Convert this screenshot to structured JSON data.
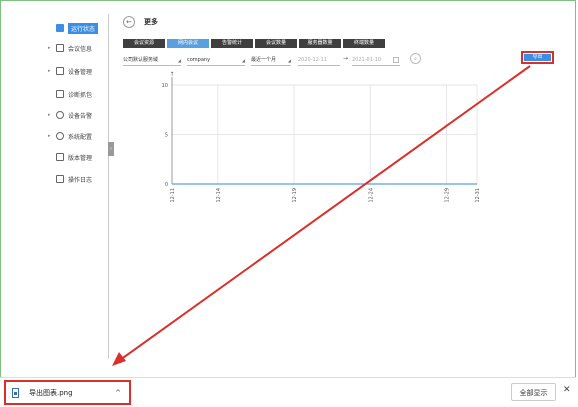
{
  "sidebar": {
    "items": [
      {
        "label": "运行状态",
        "icon": "monitor-icon",
        "arrow": ""
      },
      {
        "label": "会议信息",
        "icon": "document-icon",
        "arrow": "▸"
      },
      {
        "label": "设备管理",
        "icon": "grid-icon",
        "arrow": "▸"
      },
      {
        "label": "诊断抓包",
        "icon": "capture-icon",
        "arrow": ""
      },
      {
        "label": "设备告警",
        "icon": "alert-icon",
        "arrow": "▸"
      },
      {
        "label": "系统配置",
        "icon": "gear-icon",
        "arrow": "▸"
      },
      {
        "label": "版本管理",
        "icon": "version-icon",
        "arrow": ""
      },
      {
        "label": "操作日志",
        "icon": "log-icon",
        "arrow": ""
      }
    ]
  },
  "header": {
    "back": "←",
    "title": "更多"
  },
  "tabs": [
    "会议资源",
    "网内会议",
    "告警统计",
    "会议数量",
    "服务器数量",
    "终端数量"
  ],
  "filters": {
    "domain": "公司默认服务域",
    "user": "company",
    "period": "最近一个月",
    "start_date": "2020-12-11",
    "end_date": "2021-01-10",
    "arrow": "→"
  },
  "export_label": "导出",
  "chart_data": {
    "type": "line",
    "y_axis_arrow": "↑",
    "ylim": [
      0,
      10
    ],
    "y_ticks": [
      "10",
      "5",
      "0"
    ],
    "x_ticks": [
      "12-11",
      "12-14",
      "12-19",
      "12-24",
      "12-29",
      "12-31"
    ],
    "series": [
      {
        "values": [
          0,
          0,
          0,
          0,
          0,
          0
        ],
        "color": "#5aa0e0"
      }
    ]
  },
  "download_bar": {
    "file_name": "导出图表.png",
    "chevron": "^",
    "show_all": "全部显示",
    "close": "✕"
  }
}
